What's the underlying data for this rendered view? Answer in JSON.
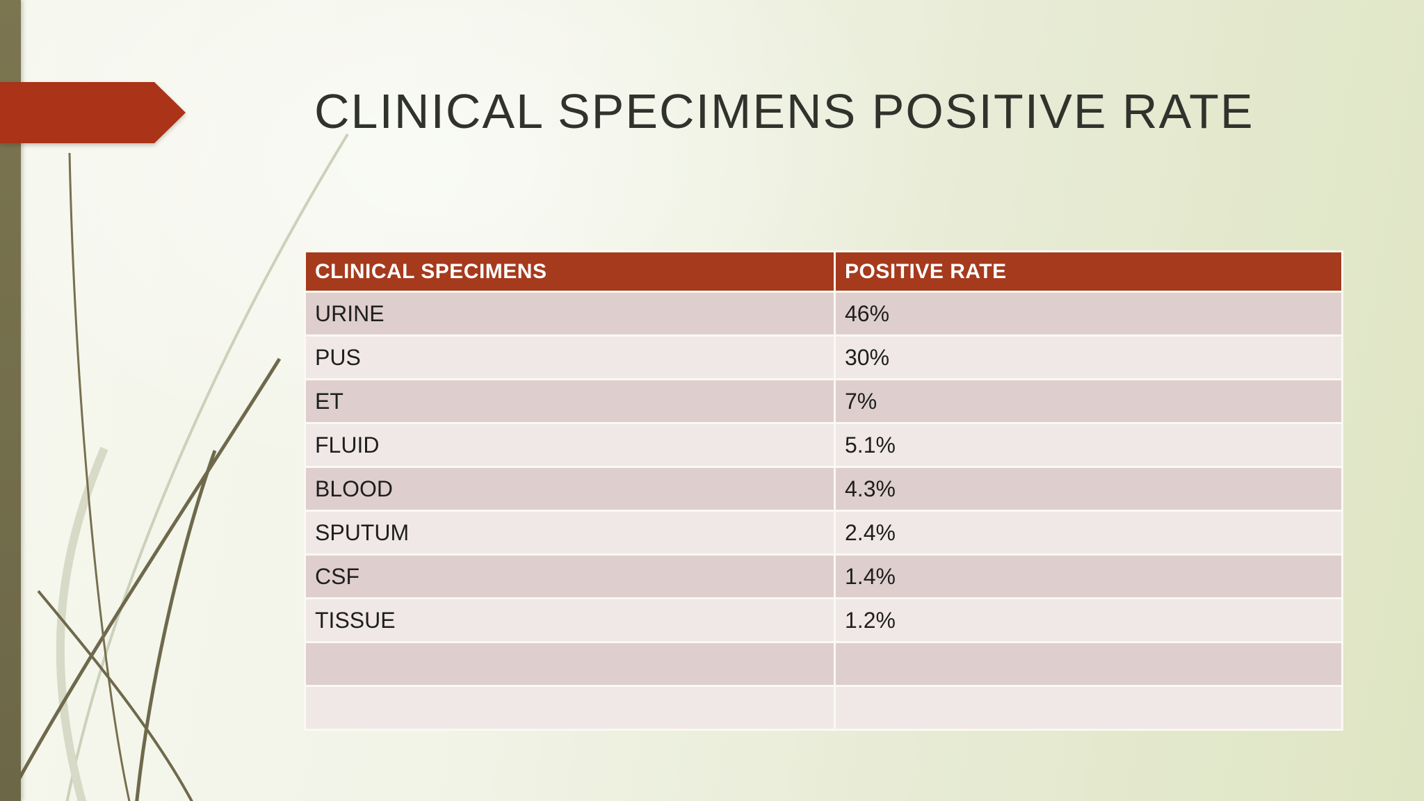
{
  "slide": {
    "title": "CLINICAL SPECIMENS POSITIVE RATE"
  },
  "table": {
    "columns": [
      "CLINICAL SPECIMENS",
      "POSITIVE RATE"
    ],
    "rows": [
      {
        "specimen": "URINE",
        "rate": "46%"
      },
      {
        "specimen": "PUS",
        "rate": "30%"
      },
      {
        "specimen": "ET",
        "rate": "7%"
      },
      {
        "specimen": "FLUID",
        "rate": "5.1%"
      },
      {
        "specimen": "BLOOD",
        "rate": "4.3%"
      },
      {
        "specimen": "SPUTUM",
        "rate": "2.4%"
      },
      {
        "specimen": "CSF",
        "rate": "1.4%"
      },
      {
        "specimen": "TISSUE",
        "rate": "1.2%"
      },
      {
        "specimen": "",
        "rate": ""
      },
      {
        "specimen": "",
        "rate": ""
      }
    ]
  },
  "theme": {
    "accent_red": "#AA3318",
    "header_bg": "#A63A1D",
    "row_dark": "#DECFCE",
    "row_light": "#F0E8E7",
    "olive_bar": "#77714F",
    "bg_left": "#F6F7EE",
    "bg_right": "#DEE5C3",
    "title_color": "#30322C"
  }
}
